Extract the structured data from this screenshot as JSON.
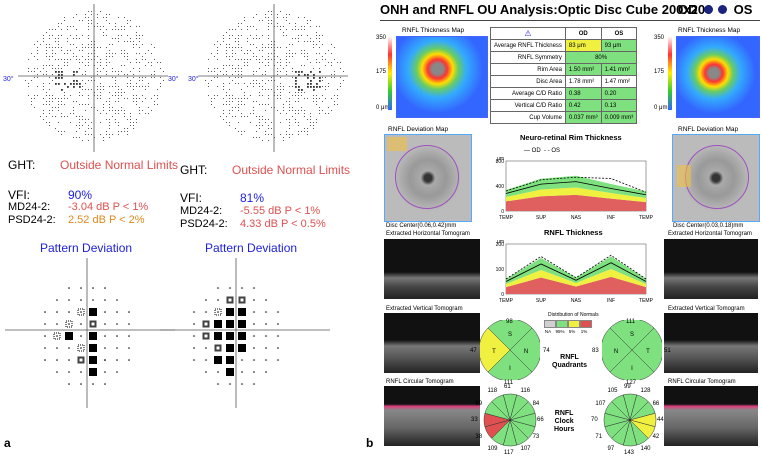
{
  "panel_a": {
    "panel_label": "a",
    "left_eye": {
      "axis_left": "30°",
      "axis_right": "30°",
      "ght_label": "GHT:",
      "ght_value": "Outside Normal Limits",
      "vfi_label": "VFI:",
      "vfi_value": "90%",
      "md_label": "MD24-2:",
      "md_value": "-3.04 dB P < 1%",
      "psd_label": "PSD24-2:",
      "psd_value": "2.52 dB P < 2%",
      "pd_title": "Pattern Deviation"
    },
    "right_eye": {
      "axis_left": "30°",
      "axis_right": "",
      "ght_label": "GHT:",
      "ght_value": "Outside Normal Limits",
      "vfi_label": "VFI:",
      "vfi_value": "81%",
      "md_label": "MD24-2:",
      "md_value": "-5.55 dB P < 1%",
      "psd_label": "PSD24-2:",
      "psd_value": "4.33 dB P < 0.5%",
      "pd_title": "Pattern Deviation"
    }
  },
  "panel_b": {
    "panel_label": "b",
    "header_title": "ONH and RNFL OU Analysis:Optic Disc Cube 200x200",
    "od_label": "OD",
    "os_label": "OS",
    "thickness_map_title": "RNFL Thickness Map",
    "scale": {
      "max": "350",
      "mid": "175",
      "min": "0 μm"
    },
    "table": {
      "header_od": "OD",
      "header_os": "OS",
      "rows": [
        {
          "label": "Average RNFL Thickness",
          "od": "83 μm",
          "os": "93 μm"
        },
        {
          "label": "RNFL Symmetry",
          "merged": "80%"
        },
        {
          "label": "Rim Area",
          "od": "1.50 mm²",
          "os": "1.41 mm²"
        },
        {
          "label": "Disc Area",
          "od": "1.78 mm²",
          "os": "1.47 mm²"
        },
        {
          "label": "Average C/D Ratio",
          "od": "0.38",
          "os": "0.20"
        },
        {
          "label": "Vertical C/D Ratio",
          "od": "0.42",
          "os": "0.13"
        },
        {
          "label": "Cup Volume",
          "od": "0.037 mm³",
          "os": "0.009 mm³"
        }
      ]
    },
    "deviation_map_title": "RNFL Deviation Map",
    "disc_center_od": "Disc Center(0.06,0.42)mm",
    "disc_center_os": "Disc Center(0.03,0.18)mm",
    "horizontal_tomogram": "Extracted Horizontal Tomogram",
    "vertical_tomogram": "Extracted Vertical Tomogram",
    "circular_tomogram": "RNFL Circular Tomogram",
    "rim_chart_title": "Neuro-retinal Rim Thickness",
    "rnfl_chart_title": "RNFL Thickness",
    "legend_od": "OD",
    "legend_os": "OS",
    "unit": "μm",
    "x_ticks": [
      "TEMP",
      "SUP",
      "NAS",
      "INF",
      "TEMP"
    ],
    "rim_y_ticks": [
      "800",
      "400",
      "0"
    ],
    "rnfl_y_ticks": [
      "200",
      "100",
      "0"
    ],
    "distribution_title": "Distribution of Normals",
    "distribution_labels": [
      "NA",
      "95%",
      "5%",
      "1%"
    ],
    "quadrants_label": "RNFL\nQuadrants",
    "clock_label": "RNFL\nClock\nHours",
    "od_quadrants": {
      "S": "98",
      "N": "74",
      "I": "111",
      "T": "47"
    },
    "os_quadrants": {
      "S": "111",
      "N": "51",
      "I": "127",
      "T": "83"
    },
    "od_clock": [
      "61",
      "116",
      "84",
      "66",
      "73",
      "107",
      "117",
      "109",
      "38",
      "33",
      "69",
      "118"
    ],
    "os_clock": [
      "99",
      "128",
      "66",
      "44",
      "42",
      "140",
      "143",
      "97",
      "71",
      "70",
      "107",
      "105"
    ]
  },
  "colors": {
    "green": "#7ee07e",
    "yellow": "#f0f040",
    "red": "#e05050",
    "gray": "#d0d0d0",
    "blue_text": "#2020e0"
  },
  "chart_data": [
    {
      "type": "line",
      "title": "Neuro-retinal Rim Thickness",
      "x": [
        "TEMP",
        "SUP",
        "NAS",
        "INF",
        "TEMP"
      ],
      "ylabel": "μm",
      "ylim": [
        0,
        800
      ],
      "series": [
        {
          "name": "OD",
          "values": [
            280,
            430,
            470,
            360,
            260
          ]
        },
        {
          "name": "OS",
          "values": [
            320,
            500,
            540,
            520,
            300
          ]
        }
      ]
    },
    {
      "type": "line",
      "title": "RNFL Thickness",
      "x": [
        "TEMP",
        "SUP",
        "NAS",
        "INF",
        "TEMP"
      ],
      "ylabel": "μm",
      "ylim": [
        0,
        200
      ],
      "series": [
        {
          "name": "OD",
          "values": [
            50,
            120,
            55,
            125,
            50
          ]
        },
        {
          "name": "OS",
          "values": [
            60,
            150,
            65,
            155,
            60
          ]
        }
      ]
    }
  ]
}
